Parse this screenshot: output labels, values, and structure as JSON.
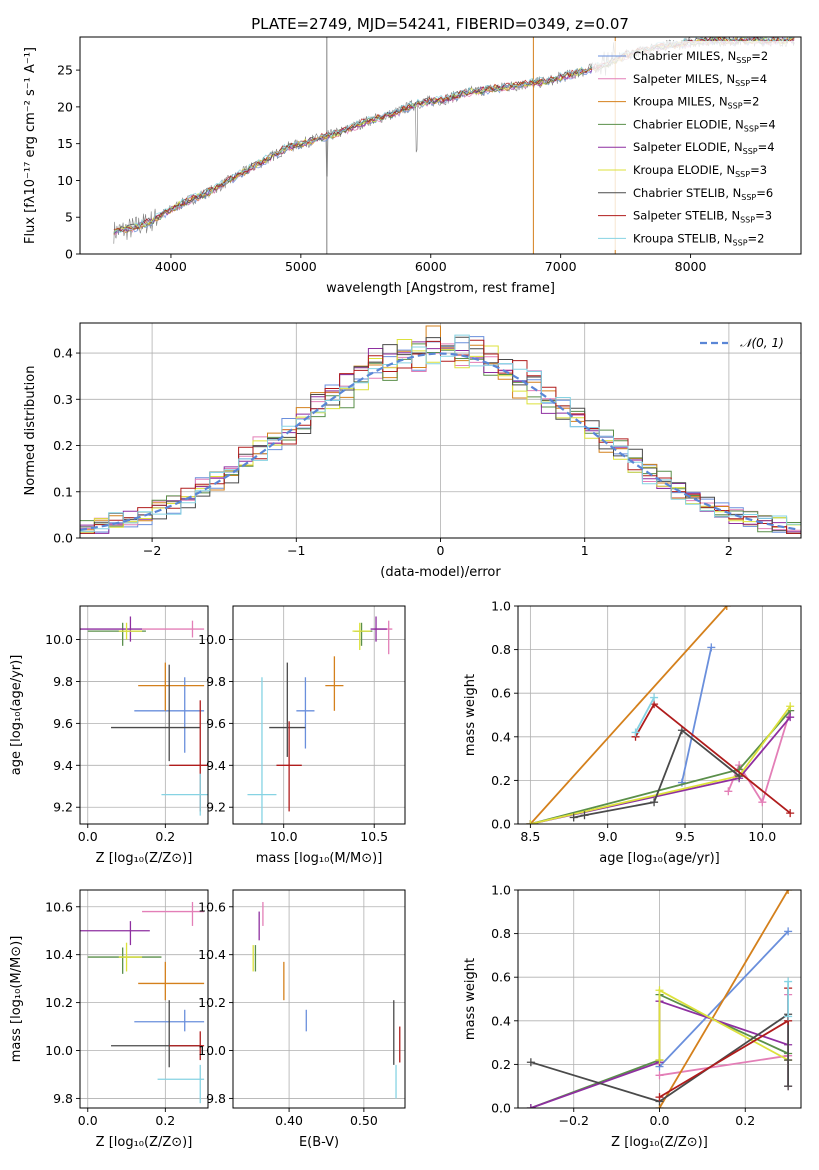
{
  "chart_data": [
    {
      "id": "spectrum",
      "type": "line",
      "title": "PLATE=2749, MJD=54241, FIBERID=0349, z=0.07",
      "xlabel": "wavelength [Angstrom, rest frame]",
      "ylabel": "Flux [fλ10⁻¹⁷ erg cm⁻² s⁻¹ A⁻¹]",
      "xlim": [
        3300,
        8850
      ],
      "ylim": [
        0,
        29.5
      ],
      "xticks": [
        4000,
        5000,
        6000,
        7000,
        8000
      ],
      "yticks": [
        0,
        5,
        10,
        15,
        20,
        25
      ],
      "grid": false,
      "legend_position": "right",
      "legend": [
        {
          "label": "Chabrier MILES, N",
          "sub": "SSP",
          "count": "=2",
          "color": "#6a8fdc"
        },
        {
          "label": "Salpeter MILES, N",
          "sub": "SSP",
          "count": "=4",
          "color": "#e37fb7"
        },
        {
          "label": "Kroupa MILES, N",
          "sub": "SSP",
          "count": "=2",
          "color": "#d4801c"
        },
        {
          "label": "Chabrier ELODIE, N",
          "sub": "SSP",
          "count": "=4",
          "color": "#5a8f4a"
        },
        {
          "label": "Salpeter ELODIE, N",
          "sub": "SSP",
          "count": "=4",
          "color": "#8e2fa0"
        },
        {
          "label": "Kroupa ELODIE, N",
          "sub": "SSP",
          "count": "=3",
          "color": "#dce13b"
        },
        {
          "label": "Chabrier STELIB, N",
          "sub": "SSP",
          "count": "=6",
          "color": "#4a4a4a"
        },
        {
          "label": "Salpeter STELIB, N",
          "sub": "SSP",
          "count": "=3",
          "color": "#b01c1c"
        },
        {
          "label": "Kroupa STELIB, N",
          "sub": "SSP",
          "count": "=2",
          "color": "#86d3e3"
        }
      ],
      "spectrum_anchors": {
        "x": [
          3560,
          3700,
          3850,
          3950,
          4100,
          4300,
          4500,
          4700,
          4900,
          5100,
          5300,
          5500,
          5700,
          5900,
          6100,
          6300,
          6500,
          6700,
          6900,
          7100,
          7300,
          7500,
          7700,
          7900,
          8100,
          8300,
          8500,
          8700,
          8800
        ],
        "y": [
          3,
          3.5,
          4.5,
          5.5,
          7,
          8.5,
          10.5,
          12.5,
          14.5,
          15.5,
          16.5,
          18,
          19,
          20.5,
          21,
          22,
          22.5,
          23,
          23.5,
          24.5,
          25.5,
          27,
          28,
          28.5,
          29,
          29,
          29,
          29,
          29
        ]
      },
      "absorption_lines": [
        5200,
        5890
      ],
      "masked_regions": [
        6790,
        7420
      ]
    },
    {
      "id": "residuals",
      "type": "histogram",
      "xlabel": "(data-model)/error",
      "ylabel": "Normed distribution",
      "xlim": [
        -2.5,
        2.5
      ],
      "ylim": [
        0,
        0.465
      ],
      "xticks": [
        -2,
        -1,
        0,
        1,
        2
      ],
      "yticks": [
        0.0,
        0.1,
        0.2,
        0.3,
        0.4
      ],
      "grid": true,
      "legend_position": "top-right",
      "reference_label": "𝒩(0, 1)",
      "reference_color": "#5a86d6",
      "bin_width": 0.1
    },
    {
      "id": "age-vs-z",
      "type": "scatter",
      "xlabel": "Z [log₁₀(Z/Z⊙)]",
      "ylabel": "age  [log₁₀(age/yr)]",
      "xlim": [
        -0.02,
        0.31
      ],
      "ylim": [
        9.12,
        10.16
      ],
      "xticks": [
        0.0,
        0.2
      ],
      "yticks": [
        9.2,
        9.4,
        9.6,
        9.8,
        10.0
      ],
      "grid": true,
      "points": [
        {
          "x": 0.25,
          "y": 9.66,
          "xerr": [
            0.13,
            0.05
          ],
          "yerr": [
            0.2,
            0.16
          ],
          "color": "#6a8fdc"
        },
        {
          "x": 0.27,
          "y": 10.05,
          "xerr": [
            0.13,
            0.03
          ],
          "yerr": [
            0.04,
            0.04
          ],
          "color": "#e37fb7"
        },
        {
          "x": 0.2,
          "y": 9.78,
          "xerr": [
            0.07,
            0.1
          ],
          "yerr": [
            0.12,
            0.11
          ],
          "color": "#d4801c"
        },
        {
          "x": 0.09,
          "y": 10.04,
          "xerr": [
            0.09,
            0.06
          ],
          "yerr": [
            0.07,
            0.04
          ],
          "color": "#5a8f4a"
        },
        {
          "x": 0.11,
          "y": 10.05,
          "xerr": [
            0.13,
            0.03
          ],
          "yerr": [
            0.06,
            0.06
          ],
          "color": "#8e2fa0"
        },
        {
          "x": 0.1,
          "y": 10.04,
          "xerr": [
            0.02,
            0.04
          ],
          "yerr": [
            0.04,
            0.04
          ],
          "color": "#dce13b"
        },
        {
          "x": 0.21,
          "y": 9.58,
          "xerr": [
            0.15,
            0.08
          ],
          "yerr": [
            0.16,
            0.3
          ],
          "color": "#4a4a4a"
        },
        {
          "x": 0.29,
          "y": 9.4,
          "xerr": [
            0.08,
            0.02
          ],
          "yerr": [
            0.22,
            0.31
          ],
          "color": "#b01c1c"
        },
        {
          "x": 0.29,
          "y": 9.26,
          "xerr": [
            0.1,
            0.02
          ],
          "yerr": [
            0.1,
            0.1
          ],
          "color": "#86d3e3"
        }
      ]
    },
    {
      "id": "age-vs-mass",
      "type": "scatter",
      "xlabel": "mass [log₁₀(M/M⊙)]",
      "ylabel": "",
      "xlim": [
        9.72,
        10.67
      ],
      "ylim": [
        9.12,
        10.16
      ],
      "xticks": [
        10.0,
        10.5
      ],
      "yticks": [
        9.2,
        9.4,
        9.6,
        9.8,
        10.0
      ],
      "grid": true,
      "points": [
        {
          "x": 10.12,
          "y": 9.66,
          "xerr": [
            0.05,
            0.05
          ],
          "yerr": [
            0.18,
            0.16
          ],
          "color": "#6a8fdc"
        },
        {
          "x": 10.58,
          "y": 10.05,
          "xerr": [
            0.08,
            0.02
          ],
          "yerr": [
            0.12,
            0.04
          ],
          "color": "#e37fb7"
        },
        {
          "x": 10.28,
          "y": 9.78,
          "xerr": [
            0.05,
            0.05
          ],
          "yerr": [
            0.12,
            0.14
          ],
          "color": "#d4801c"
        },
        {
          "x": 10.43,
          "y": 10.04,
          "xerr": [
            0.04,
            0.06
          ],
          "yerr": [
            0.07,
            0.04
          ],
          "color": "#5a8f4a"
        },
        {
          "x": 10.51,
          "y": 10.05,
          "xerr": [
            0.03,
            0.06
          ],
          "yerr": [
            0.06,
            0.06
          ],
          "color": "#8e2fa0"
        },
        {
          "x": 10.42,
          "y": 10.04,
          "xerr": [
            0.04,
            0.06
          ],
          "yerr": [
            0.09,
            0.04
          ],
          "color": "#dce13b"
        },
        {
          "x": 10.02,
          "y": 9.58,
          "xerr": [
            0.1,
            0.1
          ],
          "yerr": [
            0.14,
            0.31
          ],
          "color": "#4a4a4a"
        },
        {
          "x": 10.03,
          "y": 9.4,
          "xerr": [
            0.07,
            0.07
          ],
          "yerr": [
            0.22,
            0.21
          ],
          "color": "#b01c1c"
        },
        {
          "x": 9.88,
          "y": 9.26,
          "xerr": [
            0.08,
            0.08
          ],
          "yerr": [
            0.15,
            0.56
          ],
          "color": "#86d3e3"
        }
      ]
    },
    {
      "id": "mass-weight-vs-age",
      "type": "line",
      "xlabel": "age  [log₁₀(age/yr)]",
      "ylabel": "mass weight",
      "xlim": [
        8.42,
        10.25
      ],
      "ylim": [
        0,
        1.0
      ],
      "xticks": [
        8.5,
        9.0,
        9.5,
        10.0
      ],
      "yticks": [
        0.0,
        0.2,
        0.4,
        0.6,
        0.8,
        1.0
      ],
      "grid": true,
      "series": [
        {
          "color": "#6a8fdc",
          "x": [
            9.48,
            9.67
          ],
          "y": [
            0.19,
            0.81
          ]
        },
        {
          "color": "#e37fb7",
          "x": [
            9.78,
            9.85,
            10.0,
            10.18
          ],
          "y": [
            0.15,
            0.27,
            0.1,
            0.52
          ]
        },
        {
          "color": "#d4801c",
          "x": [
            8.5,
            9.77
          ],
          "y": [
            0.0,
            1.0
          ]
        },
        {
          "color": "#5a8f4a",
          "x": [
            8.5,
            9.85,
            10.18
          ],
          "y": [
            0.0,
            0.25,
            0.52
          ]
        },
        {
          "color": "#8e2fa0",
          "x": [
            8.5,
            9.85,
            10.18
          ],
          "y": [
            0.0,
            0.21,
            0.49
          ]
        },
        {
          "color": "#dce13b",
          "x": [
            8.5,
            9.85,
            10.18
          ],
          "y": [
            0.0,
            0.22,
            0.54
          ]
        },
        {
          "color": "#4a4a4a",
          "x": [
            8.78,
            8.85,
            9.3,
            9.48,
            9.85
          ],
          "y": [
            0.03,
            0.04,
            0.1,
            0.43,
            0.22
          ]
        },
        {
          "color": "#b01c1c",
          "x": [
            9.18,
            9.3,
            10.18
          ],
          "y": [
            0.4,
            0.55,
            0.05
          ]
        },
        {
          "color": "#86d3e3",
          "x": [
            9.18,
            9.3
          ],
          "y": [
            0.42,
            0.58
          ]
        }
      ]
    },
    {
      "id": "mass-vs-z",
      "type": "scatter",
      "xlabel": "Z [log₁₀(Z/Z⊙)]",
      "ylabel": "mass [log₁₀(M/M⊙)]",
      "xlim": [
        -0.02,
        0.31
      ],
      "ylim": [
        9.76,
        10.67
      ],
      "xticks": [
        0.0,
        0.2
      ],
      "yticks": [
        9.8,
        10.0,
        10.2,
        10.4,
        10.6
      ],
      "grid": true,
      "points": [
        {
          "x": 0.25,
          "y": 10.12,
          "xerr": [
            0.13,
            0.05
          ],
          "yerr": [
            0.04,
            0.05
          ],
          "color": "#6a8fdc"
        },
        {
          "x": 0.27,
          "y": 10.58,
          "xerr": [
            0.13,
            0.03
          ],
          "yerr": [
            0.06,
            0.04
          ],
          "color": "#e37fb7"
        },
        {
          "x": 0.2,
          "y": 10.28,
          "xerr": [
            0.07,
            0.1
          ],
          "yerr": [
            0.07,
            0.09
          ],
          "color": "#d4801c"
        },
        {
          "x": 0.09,
          "y": 10.39,
          "xerr": [
            0.09,
            0.1
          ],
          "yerr": [
            0.07,
            0.04
          ],
          "color": "#5a8f4a"
        },
        {
          "x": 0.11,
          "y": 10.5,
          "xerr": [
            0.13,
            0.05
          ],
          "yerr": [
            0.06,
            0.04
          ],
          "color": "#8e2fa0"
        },
        {
          "x": 0.1,
          "y": 10.39,
          "xerr": [
            0.02,
            0.04
          ],
          "yerr": [
            0.06,
            0.06
          ],
          "color": "#dce13b"
        },
        {
          "x": 0.21,
          "y": 10.02,
          "xerr": [
            0.15,
            0.08
          ],
          "yerr": [
            0.09,
            0.19
          ],
          "color": "#4a4a4a"
        },
        {
          "x": 0.29,
          "y": 10.02,
          "xerr": [
            0.08,
            0.01
          ],
          "yerr": [
            0.06,
            0.06
          ],
          "color": "#b01c1c"
        },
        {
          "x": 0.29,
          "y": 9.88,
          "xerr": [
            0.11,
            0.01
          ],
          "yerr": [
            0.1,
            0.06
          ],
          "color": "#86d3e3"
        }
      ]
    },
    {
      "id": "mass-vs-ebv",
      "type": "scatter",
      "xlabel": "E(B-V)",
      "ylabel": "",
      "xlim": [
        0.325,
        0.555
      ],
      "ylim": [
        9.76,
        10.67
      ],
      "xticks": [
        0.4,
        0.5
      ],
      "yticks": [
        9.8,
        10.0,
        10.2,
        10.4,
        10.6
      ],
      "grid": true,
      "points": [
        {
          "x": 0.423,
          "y": 10.12,
          "xerr": [
            0,
            0
          ],
          "yerr": [
            0.04,
            0.05
          ],
          "color": "#6a8fdc"
        },
        {
          "x": 0.365,
          "y": 10.58,
          "xerr": [
            0,
            0
          ],
          "yerr": [
            0.06,
            0.04
          ],
          "color": "#e37fb7"
        },
        {
          "x": 0.393,
          "y": 10.28,
          "xerr": [
            0,
            0
          ],
          "yerr": [
            0.07,
            0.09
          ],
          "color": "#d4801c"
        },
        {
          "x": 0.355,
          "y": 10.39,
          "xerr": [
            0,
            0
          ],
          "yerr": [
            0.06,
            0.05
          ],
          "color": "#5a8f4a"
        },
        {
          "x": 0.36,
          "y": 10.52,
          "xerr": [
            0,
            0
          ],
          "yerr": [
            0.06,
            0.06
          ],
          "color": "#8e2fa0"
        },
        {
          "x": 0.352,
          "y": 10.39,
          "xerr": [
            0,
            0
          ],
          "yerr": [
            0.06,
            0.05
          ],
          "color": "#dce13b"
        },
        {
          "x": 0.54,
          "y": 10.02,
          "xerr": [
            0,
            0
          ],
          "yerr": [
            0.08,
            0.19
          ],
          "color": "#4a4a4a"
        },
        {
          "x": 0.548,
          "y": 10.02,
          "xerr": [
            0,
            0
          ],
          "yerr": [
            0.07,
            0.08
          ],
          "color": "#b01c1c"
        },
        {
          "x": 0.543,
          "y": 9.88,
          "xerr": [
            0,
            0
          ],
          "yerr": [
            0.08,
            0.06
          ],
          "color": "#86d3e3"
        }
      ]
    },
    {
      "id": "mass-weight-vs-z",
      "type": "line",
      "xlabel": "Z [log₁₀(Z/Z⊙)]",
      "ylabel": "mass weight",
      "xlim": [
        -0.33,
        0.33
      ],
      "ylim": [
        0,
        1.0
      ],
      "xticks": [
        -0.2,
        0.0,
        0.2
      ],
      "yticks": [
        0.0,
        0.2,
        0.4,
        0.6,
        0.8,
        1.0
      ],
      "grid": true,
      "series": [
        {
          "color": "#6a8fdc",
          "x": [
            0.0,
            0.3
          ],
          "y": [
            0.19,
            0.81
          ]
        },
        {
          "color": "#e37fb7",
          "x": [
            0.0,
            0.3,
            0.3,
            0.3
          ],
          "y": [
            0.15,
            0.24,
            0.52,
            0.1
          ]
        },
        {
          "color": "#d4801c",
          "x": [
            0.0,
            0.3
          ],
          "y": [
            0.0,
            1.0
          ]
        },
        {
          "color": "#5a8f4a",
          "x": [
            -0.3,
            0.0,
            0.0,
            0.3
          ],
          "y": [
            0.0,
            0.22,
            0.52,
            0.25
          ]
        },
        {
          "color": "#8e2fa0",
          "x": [
            -0.3,
            0.0,
            0.0,
            0.3
          ],
          "y": [
            0.0,
            0.21,
            0.49,
            0.29
          ]
        },
        {
          "color": "#dce13b",
          "x": [
            0.0,
            0.0,
            0.3
          ],
          "y": [
            0.22,
            0.54,
            0.22
          ]
        },
        {
          "color": "#4a4a4a",
          "x": [
            -0.3,
            0.0,
            0.3,
            0.3,
            0.3
          ],
          "y": [
            0.21,
            0.03,
            0.43,
            0.1,
            0.22
          ]
        },
        {
          "color": "#b01c1c",
          "x": [
            0.0,
            0.3,
            0.3
          ],
          "y": [
            0.05,
            0.4,
            0.55
          ]
        },
        {
          "color": "#86d3e3",
          "x": [
            0.3,
            0.3
          ],
          "y": [
            0.42,
            0.58
          ]
        }
      ]
    }
  ]
}
